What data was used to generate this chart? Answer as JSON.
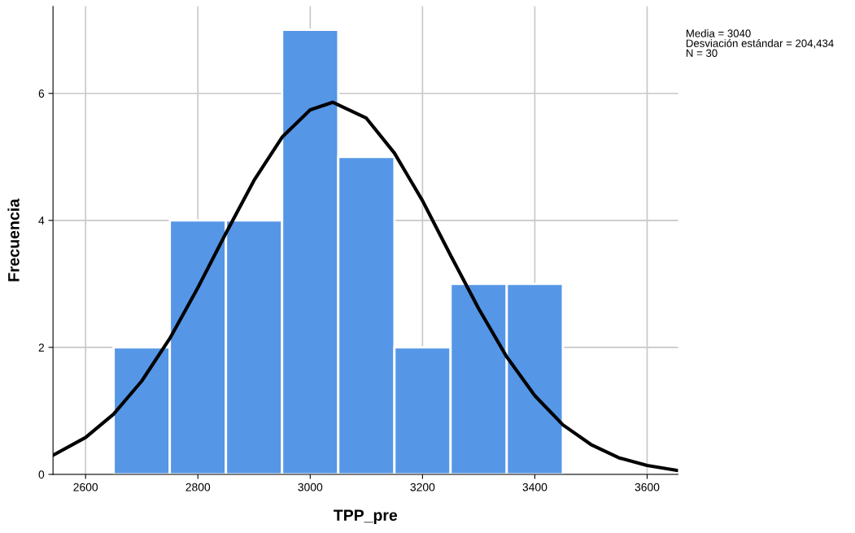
{
  "chart_data": {
    "type": "histogram",
    "xlabel": "TPP_pre",
    "ylabel": "Frecuencia",
    "bins": [
      2650,
      2750,
      2850,
      2950,
      3050,
      3150,
      3250,
      3350,
      3450
    ],
    "values": [
      2,
      4,
      4,
      7,
      5,
      2,
      3,
      3
    ],
    "color": "#5596e6",
    "series": [
      {
        "type": "line",
        "color": "#000000",
        "x": [
          2542,
          2600,
          2650,
          2700,
          2750,
          2800,
          2850,
          2900,
          2950,
          3000,
          3040,
          3100,
          3150,
          3200,
          3250,
          3300,
          3350,
          3400,
          3450,
          3500,
          3550,
          3600,
          3655
        ],
        "values": [
          0.3,
          0.58,
          0.95,
          1.47,
          2.14,
          2.94,
          3.8,
          4.63,
          5.31,
          5.74,
          5.86,
          5.61,
          5.06,
          4.31,
          3.45,
          2.61,
          1.85,
          1.24,
          0.78,
          0.47,
          0.26,
          0.14,
          0.06
        ]
      }
    ],
    "xlim": [
      2542,
      3655
    ],
    "xticks": [
      2600,
      2800,
      3000,
      3200,
      3400,
      3600
    ],
    "ylim": [
      0,
      7.37
    ],
    "yticks": [
      0,
      2,
      4,
      6
    ],
    "grid": true,
    "annotations": [
      "Media = 3040",
      "Desviación estándar = 204,434",
      "N = 30"
    ]
  }
}
